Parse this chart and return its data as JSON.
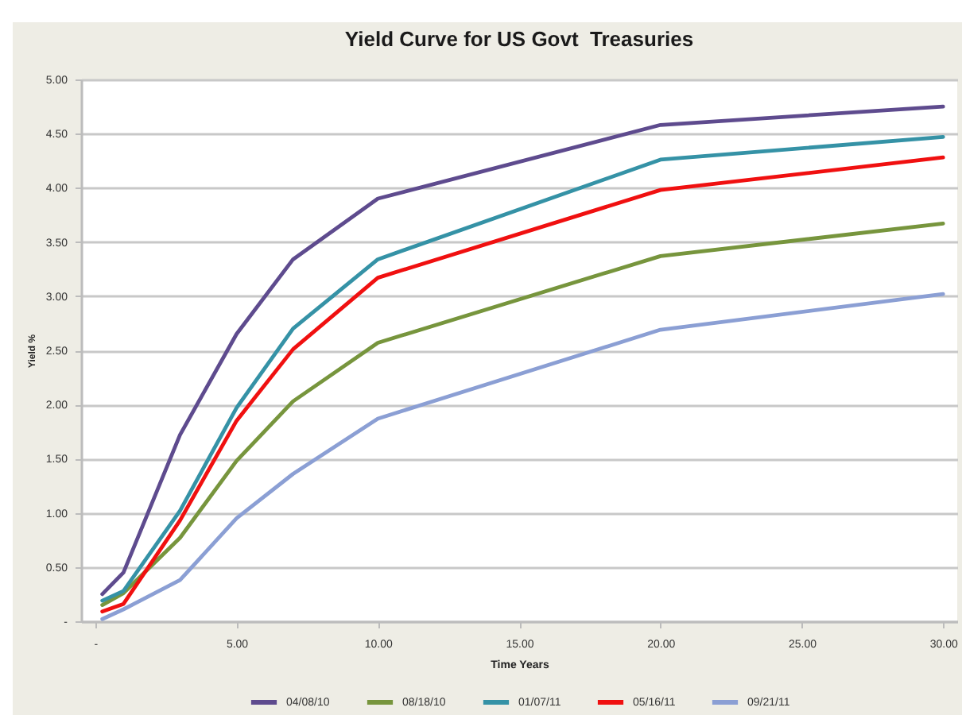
{
  "chart_data": {
    "type": "line",
    "title": "Yield Curve for US Govt  Treasuries",
    "xlabel": "Time Years",
    "ylabel": "Yield %",
    "x": [
      0.25,
      1,
      3,
      5,
      7,
      10,
      20,
      30
    ],
    "series": [
      {
        "name": "04/08/10",
        "color": "#5e4b8e",
        "values": [
          0.25,
          0.45,
          1.72,
          2.65,
          3.34,
          3.9,
          4.58,
          4.75
        ]
      },
      {
        "name": "08/18/10",
        "color": "#77953d",
        "values": [
          0.15,
          0.26,
          0.77,
          1.48,
          2.03,
          2.57,
          3.37,
          3.67
        ]
      },
      {
        "name": "01/07/11",
        "color": "#3592a6",
        "values": [
          0.19,
          0.28,
          1.02,
          1.97,
          2.7,
          3.34,
          4.26,
          4.47
        ]
      },
      {
        "name": "05/16/11",
        "color": "#f01010",
        "values": [
          0.09,
          0.16,
          0.93,
          1.85,
          2.51,
          3.17,
          3.98,
          4.28
        ]
      },
      {
        "name": "09/21/11",
        "color": "#8b9fd4",
        "values": [
          0.02,
          0.11,
          0.38,
          0.95,
          1.36,
          1.87,
          2.69,
          3.02
        ]
      }
    ],
    "xlim": [
      -0.5,
      30.5
    ],
    "ylim": [
      0,
      5
    ],
    "xticks": [
      {
        "value": 0,
        "label": "-"
      },
      {
        "value": 5,
        "label": "5.00"
      },
      {
        "value": 10,
        "label": "10.00"
      },
      {
        "value": 15,
        "label": "15.00"
      },
      {
        "value": 20,
        "label": "20.00"
      },
      {
        "value": 25,
        "label": "25.00"
      },
      {
        "value": 30,
        "label": "30.00"
      }
    ],
    "yticks": [
      {
        "value": 0,
        "label": "-"
      },
      {
        "value": 0.5,
        "label": "0.50"
      },
      {
        "value": 1,
        "label": "1.00"
      },
      {
        "value": 1.5,
        "label": "1.50"
      },
      {
        "value": 2,
        "label": "2.00"
      },
      {
        "value": 2.5,
        "label": "2.50"
      },
      {
        "value": 3,
        "label": "3.00"
      },
      {
        "value": 3.5,
        "label": "3.50"
      },
      {
        "value": 4,
        "label": "4.00"
      },
      {
        "value": 4.5,
        "label": "4.50"
      },
      {
        "value": 5,
        "label": "5.00"
      }
    ],
    "grid": "y",
    "legend": "bottom",
    "line_style": "solid"
  }
}
